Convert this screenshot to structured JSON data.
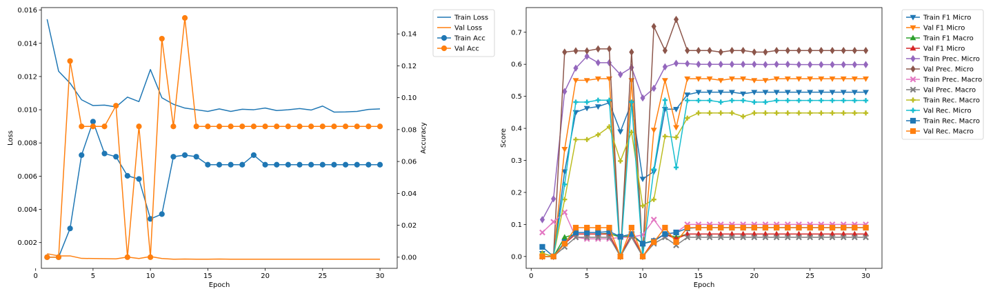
{
  "chart_data": [
    {
      "type": "line",
      "xlabel": "Epoch",
      "ylabel": "Loss",
      "y2label": "Accuracy",
      "xlim": [
        0.5,
        31.5
      ],
      "ylim": [
        0.00045,
        0.01615
      ],
      "y2lim": [
        -0.007,
        0.1565
      ],
      "xticks": [
        0,
        5,
        10,
        15,
        20,
        25,
        30
      ],
      "yticks": [
        0.002,
        0.004,
        0.006,
        0.008,
        0.01,
        0.012,
        0.014,
        0.016
      ],
      "y2ticks": [
        0.0,
        0.02,
        0.04,
        0.06,
        0.08,
        0.1,
        0.12,
        0.14
      ],
      "legend_position": "outside-top-right",
      "x": [
        1,
        2,
        3,
        4,
        5,
        6,
        7,
        8,
        9,
        10,
        11,
        12,
        13,
        14,
        15,
        16,
        17,
        18,
        19,
        20,
        21,
        22,
        23,
        24,
        25,
        26,
        27,
        28,
        29,
        30
      ],
      "series": [
        {
          "name": "Train Loss",
          "axis": "left",
          "color": "#1f77b4",
          "marker": "none",
          "values": [
            0.01545,
            0.01232,
            0.0116,
            0.0106,
            0.01025,
            0.01028,
            0.01017,
            0.01076,
            0.01049,
            0.01242,
            0.01072,
            0.01033,
            0.0101,
            0.01,
            0.0099,
            0.01005,
            0.0099,
            0.01003,
            0.01,
            0.0101,
            0.00995,
            0.01,
            0.01007,
            0.00998,
            0.01022,
            0.00986,
            0.00987,
            0.0099,
            0.01002,
            0.01005
          ]
        },
        {
          "name": "Val Loss",
          "axis": "left",
          "color": "#ff7f0e",
          "marker": "none",
          "values": [
            0.00133,
            0.0012,
            0.0012,
            0.00105,
            0.00104,
            0.00103,
            0.00102,
            0.00113,
            0.00104,
            0.00116,
            0.00104,
            0.001,
            0.00101,
            0.001,
            0.001,
            0.00101,
            0.001,
            0.001,
            0.001,
            0.001,
            0.001,
            0.001,
            0.001,
            0.001,
            0.001,
            0.001,
            0.001,
            0.001,
            0.001,
            0.001
          ]
        },
        {
          "name": "Train Acc",
          "axis": "right",
          "color": "#1f77b4",
          "marker": "circle",
          "values": [
            0.0,
            0.0,
            0.018,
            0.064,
            0.085,
            0.065,
            0.063,
            0.051,
            0.049,
            0.024,
            0.027,
            0.063,
            0.064,
            0.063,
            0.058,
            0.058,
            0.058,
            0.058,
            0.064,
            0.058,
            0.058,
            0.058,
            0.058,
            0.058,
            0.058,
            0.058,
            0.058,
            0.058,
            0.058,
            0.058
          ]
        },
        {
          "name": "Val Acc",
          "axis": "right",
          "color": "#ff7f0e",
          "marker": "circle",
          "values": [
            0.0,
            0.0,
            0.123,
            0.082,
            0.082,
            0.082,
            0.095,
            0.0,
            0.082,
            0.0,
            0.137,
            0.082,
            0.15,
            0.082,
            0.082,
            0.082,
            0.082,
            0.082,
            0.082,
            0.082,
            0.082,
            0.082,
            0.082,
            0.082,
            0.082,
            0.082,
            0.082,
            0.082,
            0.082,
            0.082
          ]
        }
      ]
    },
    {
      "type": "line",
      "xlabel": "Epoch",
      "ylabel": "Score",
      "xlim": [
        -0.45,
        31.45
      ],
      "ylim": [
        -0.037,
        0.777
      ],
      "xticks": [
        0,
        5,
        10,
        15,
        20,
        25,
        30
      ],
      "yticks": [
        0.0,
        0.1,
        0.2,
        0.3,
        0.4,
        0.5,
        0.6,
        0.7
      ],
      "legend_position": "outside-top-right",
      "x": [
        1,
        2,
        3,
        4,
        5,
        6,
        7,
        8,
        9,
        10,
        11,
        12,
        13,
        14,
        15,
        16,
        17,
        18,
        19,
        20,
        21,
        22,
        23,
        24,
        25,
        26,
        27,
        28,
        29,
        30
      ],
      "series": [
        {
          "name": "Train F1 Micro",
          "color": "#1f77b4",
          "marker": "tri-down",
          "values": [
            0.01,
            0.0,
            0.265,
            0.45,
            0.463,
            0.468,
            0.48,
            0.39,
            0.48,
            0.242,
            0.265,
            0.46,
            0.46,
            0.505,
            0.513,
            0.513,
            0.513,
            0.513,
            0.508,
            0.513,
            0.513,
            0.513,
            0.513,
            0.513,
            0.513,
            0.513,
            0.513,
            0.513,
            0.513,
            0.513
          ]
        },
        {
          "name": "Val F1 Micro",
          "color": "#ff7f0e",
          "marker": "tri-down",
          "values": [
            0.0,
            0.0,
            0.335,
            0.55,
            0.55,
            0.555,
            0.555,
            0.0,
            0.55,
            0.0,
            0.395,
            0.55,
            0.403,
            0.555,
            0.555,
            0.555,
            0.55,
            0.555,
            0.555,
            0.55,
            0.55,
            0.555,
            0.555,
            0.555,
            0.555,
            0.555,
            0.555,
            0.555,
            0.555,
            0.555
          ]
        },
        {
          "name": "Train F1 Macro",
          "color": "#2ca02c",
          "marker": "tri-up",
          "values": [
            0.01,
            0.0,
            0.06,
            0.07,
            0.07,
            0.07,
            0.072,
            0.06,
            0.065,
            0.04,
            0.05,
            0.07,
            0.06,
            0.07,
            0.07,
            0.07,
            0.07,
            0.07,
            0.07,
            0.07,
            0.07,
            0.07,
            0.07,
            0.07,
            0.07,
            0.07,
            0.07,
            0.07,
            0.07,
            0.07
          ]
        },
        {
          "name": "Val F1 Micro",
          "color": "#d62728",
          "marker": "tri-up",
          "values": [
            0.0,
            0.0,
            0.04,
            0.07,
            0.07,
            0.07,
            0.07,
            0.0,
            0.07,
            0.0,
            0.05,
            0.07,
            0.055,
            0.07,
            0.07,
            0.07,
            0.07,
            0.07,
            0.07,
            0.07,
            0.07,
            0.07,
            0.07,
            0.07,
            0.07,
            0.07,
            0.07,
            0.07,
            0.07,
            0.07
          ]
        },
        {
          "name": "Train Prec. Micro",
          "color": "#9467bd",
          "marker": "diamond",
          "values": [
            0.115,
            0.18,
            0.515,
            0.588,
            0.625,
            0.605,
            0.605,
            0.568,
            0.59,
            0.495,
            0.525,
            0.592,
            0.603,
            0.602,
            0.6,
            0.6,
            0.6,
            0.6,
            0.6,
            0.6,
            0.599,
            0.6,
            0.6,
            0.599,
            0.599,
            0.599,
            0.599,
            0.599,
            0.599,
            0.599
          ]
        },
        {
          "name": "Val Prec. Micro",
          "color": "#8c564b",
          "marker": "diamond",
          "values": [
            0.0,
            0.0,
            0.638,
            0.642,
            0.642,
            0.648,
            0.648,
            0.0,
            0.638,
            0.0,
            0.718,
            0.643,
            0.74,
            0.643,
            0.643,
            0.643,
            0.638,
            0.643,
            0.643,
            0.638,
            0.638,
            0.643,
            0.643,
            0.643,
            0.643,
            0.643,
            0.643,
            0.643,
            0.643,
            0.643
          ]
        },
        {
          "name": "Train Prec. Macro",
          "color": "#e377c2",
          "marker": "x",
          "values": [
            0.075,
            0.108,
            0.138,
            0.06,
            0.055,
            0.055,
            0.055,
            0.06,
            0.06,
            0.068,
            0.115,
            0.068,
            0.075,
            0.1,
            0.1,
            0.1,
            0.1,
            0.1,
            0.1,
            0.1,
            0.1,
            0.1,
            0.1,
            0.1,
            0.1,
            0.1,
            0.1,
            0.1,
            0.1,
            0.1
          ]
        },
        {
          "name": "Val Prec. Macro",
          "color": "#7f7f7f",
          "marker": "x",
          "values": [
            0.0,
            0.0,
            0.03,
            0.06,
            0.06,
            0.06,
            0.06,
            0.0,
            0.06,
            0.0,
            0.04,
            0.06,
            0.035,
            0.06,
            0.06,
            0.06,
            0.06,
            0.06,
            0.06,
            0.06,
            0.06,
            0.06,
            0.06,
            0.06,
            0.06,
            0.06,
            0.06,
            0.06,
            0.06,
            0.06
          ]
        },
        {
          "name": "Train Rec. Macro",
          "color": "#bcbd22",
          "marker": "plus",
          "values": [
            0.01,
            0.0,
            0.178,
            0.365,
            0.365,
            0.38,
            0.405,
            0.298,
            0.388,
            0.158,
            0.178,
            0.375,
            0.372,
            0.432,
            0.448,
            0.448,
            0.448,
            0.448,
            0.437,
            0.448,
            0.448,
            0.448,
            0.448,
            0.448,
            0.448,
            0.448,
            0.448,
            0.448,
            0.448,
            0.448
          ]
        },
        {
          "name": "Val Rec. Micro",
          "color": "#17becf",
          "marker": "plus",
          "values": [
            0.0,
            0.0,
            0.225,
            0.482,
            0.482,
            0.488,
            0.488,
            0.0,
            0.482,
            0.0,
            0.272,
            0.488,
            0.278,
            0.487,
            0.487,
            0.487,
            0.482,
            0.487,
            0.487,
            0.482,
            0.482,
            0.487,
            0.487,
            0.487,
            0.487,
            0.487,
            0.487,
            0.487,
            0.487,
            0.487
          ]
        },
        {
          "name": "Train Rec. Macro",
          "color": "#1f77b4",
          "marker": "square",
          "values": [
            0.03,
            0.0,
            0.045,
            0.075,
            0.075,
            0.075,
            0.078,
            0.062,
            0.07,
            0.04,
            0.048,
            0.07,
            0.075,
            0.088,
            0.09,
            0.09,
            0.09,
            0.09,
            0.09,
            0.09,
            0.09,
            0.09,
            0.09,
            0.09,
            0.09,
            0.09,
            0.09,
            0.09,
            0.09,
            0.09
          ]
        },
        {
          "name": "Val Rec. Macro",
          "color": "#ff7f0e",
          "marker": "square",
          "values": [
            0.0,
            0.0,
            0.04,
            0.09,
            0.09,
            0.09,
            0.09,
            0.0,
            0.09,
            0.0,
            0.045,
            0.09,
            0.045,
            0.09,
            0.09,
            0.09,
            0.09,
            0.09,
            0.09,
            0.09,
            0.09,
            0.09,
            0.09,
            0.09,
            0.09,
            0.09,
            0.09,
            0.09,
            0.09,
            0.09
          ]
        }
      ]
    }
  ]
}
